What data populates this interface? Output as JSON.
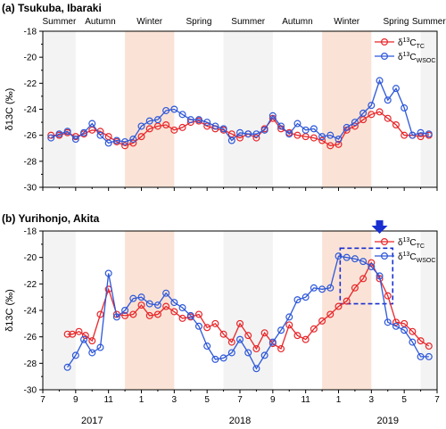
{
  "chart_data": [
    {
      "type": "line",
      "panel_label": "(a) Tsukuba, Ibaraki",
      "ylabel": "δ13C (‰)",
      "ylim": [
        -30,
        -18
      ],
      "yticks": [
        -30,
        -28,
        -26,
        -24,
        -22,
        -20,
        -18
      ],
      "xlim": [
        7,
        31
      ],
      "grid": false,
      "legend_position": "top-right",
      "seasons": [
        {
          "label": "Summer",
          "start": 7,
          "end": 9,
          "shade": "#f3f3f3",
          "label_color": "#000000"
        },
        {
          "label": "Autumn",
          "start": 9,
          "end": 12,
          "shade": "none",
          "label_color": "#000000"
        },
        {
          "label": "Winter",
          "start": 12,
          "end": 15,
          "shade": "#fae3d6",
          "label_color": "#d42a1e"
        },
        {
          "label": "Spring",
          "start": 15,
          "end": 18,
          "shade": "none",
          "label_color": "#000000"
        },
        {
          "label": "Summer",
          "start": 18,
          "end": 21,
          "shade": "#f3f3f3",
          "label_color": "#000000"
        },
        {
          "label": "Autumn",
          "start": 21,
          "end": 24,
          "shade": "none",
          "label_color": "#000000"
        },
        {
          "label": "Winter",
          "start": 24,
          "end": 27,
          "shade": "#fae3d6",
          "label_color": "#d42a1e"
        },
        {
          "label": "Spring",
          "start": 27,
          "end": 30,
          "shade": "none",
          "label_color": "#000000"
        },
        {
          "label": "Summer",
          "start": 30,
          "end": 31,
          "shade": "#f3f3f3",
          "label_color": "#000000"
        }
      ],
      "series": [
        {
          "name": "δ13C_TC",
          "color": "#e8262a",
          "x": [
            7.5,
            8.0,
            8.5,
            9.0,
            9.5,
            10.0,
            10.5,
            11.0,
            11.5,
            12.0,
            12.5,
            13.0,
            13.5,
            14.0,
            14.5,
            15.0,
            15.5,
            16.0,
            16.5,
            17.0,
            17.5,
            18.0,
            18.5,
            19.0,
            19.5,
            20.0,
            20.5,
            21.0,
            21.5,
            22.0,
            22.5,
            23.0,
            23.5,
            24.0,
            24.5,
            25.0,
            25.5,
            26.0,
            26.5,
            27.0,
            27.5,
            28.0,
            28.5,
            29.0,
            29.5,
            30.0,
            30.5
          ],
          "y": [
            -26.0,
            -26.0,
            -25.8,
            -26.1,
            -25.9,
            -25.6,
            -25.7,
            -26.1,
            -26.5,
            -26.8,
            -26.6,
            -26.1,
            -25.5,
            -25.3,
            -25.2,
            -25.6,
            -25.4,
            -25.0,
            -24.9,
            -25.3,
            -25.5,
            -25.6,
            -25.9,
            -26.2,
            -25.9,
            -26.2,
            -25.5,
            -24.7,
            -25.5,
            -25.8,
            -26.0,
            -26.1,
            -26.2,
            -26.4,
            -26.8,
            -26.7,
            -25.6,
            -25.3,
            -24.8,
            -24.4,
            -24.2,
            -24.7,
            -25.2,
            -26.0,
            -26.0,
            -26.1,
            -26.0
          ]
        },
        {
          "name": "δ13C_WSOC",
          "color": "#2e58d9",
          "x": [
            7.5,
            8.0,
            8.5,
            9.0,
            9.5,
            10.0,
            10.5,
            11.0,
            11.5,
            12.0,
            12.5,
            13.0,
            13.5,
            14.0,
            14.5,
            15.0,
            15.5,
            16.0,
            16.5,
            17.0,
            17.5,
            18.0,
            18.5,
            19.0,
            19.5,
            20.0,
            20.5,
            21.0,
            21.5,
            22.0,
            22.5,
            23.0,
            23.5,
            24.0,
            24.5,
            25.0,
            25.5,
            26.0,
            26.5,
            27.0,
            27.5,
            28.0,
            28.5,
            29.0,
            29.5,
            30.0,
            30.5
          ],
          "y": [
            -26.2,
            -25.9,
            -25.7,
            -26.3,
            -25.8,
            -25.1,
            -26.0,
            -26.6,
            -26.4,
            -26.5,
            -26.3,
            -25.3,
            -24.9,
            -24.8,
            -24.1,
            -24.0,
            -24.4,
            -24.8,
            -24.8,
            -25.0,
            -25.3,
            -25.5,
            -26.4,
            -25.8,
            -25.9,
            -25.9,
            -25.6,
            -24.5,
            -25.3,
            -25.9,
            -25.1,
            -25.6,
            -25.5,
            -26.1,
            -26.0,
            -26.3,
            -25.4,
            -25.0,
            -24.3,
            -23.7,
            -21.8,
            -23.3,
            -22.4,
            -23.9,
            -26.0,
            -25.8,
            -25.9
          ]
        }
      ]
    },
    {
      "type": "line",
      "panel_label": "(b) Yurihonjo, Akita",
      "ylabel": "δ13C (‰)",
      "ylim": [
        -30,
        -18
      ],
      "yticks": [
        -30,
        -28,
        -26,
        -24,
        -22,
        -20,
        -18
      ],
      "xlim": [
        7,
        31
      ],
      "xticks": [
        7,
        9,
        11,
        13,
        15,
        17,
        19,
        21,
        23,
        25,
        27,
        29,
        31
      ],
      "xticklabels": [
        "7",
        "9",
        "11",
        "1",
        "3",
        "5",
        "7",
        "9",
        "11",
        "1",
        "3",
        "5",
        "7"
      ],
      "year_labels": [
        {
          "label": "2017",
          "at": 10
        },
        {
          "label": "2018",
          "at": 19
        },
        {
          "label": "2019",
          "at": 28
        }
      ],
      "grid": false,
      "legend_position": "top-right",
      "highlight_box": {
        "x": [
          25.1,
          28.3
        ],
        "y": [
          -23.5,
          -19.3
        ],
        "color": "#1a2fd0",
        "arrow_at": 27.5
      },
      "seasons": [
        {
          "start": 7,
          "end": 9,
          "shade": "#f3f3f3"
        },
        {
          "start": 12,
          "end": 15,
          "shade": "#fae3d6"
        },
        {
          "start": 18,
          "end": 21,
          "shade": "#f3f3f3"
        },
        {
          "start": 24,
          "end": 27,
          "shade": "#fae3d6"
        },
        {
          "start": 30,
          "end": 31,
          "shade": "#f3f3f3"
        }
      ],
      "series": [
        {
          "name": "δ13C_TC",
          "color": "#e8262a",
          "x": [
            8.5,
            8.8,
            9.2,
            9.6,
            10.0,
            10.5,
            11.0,
            11.5,
            12.0,
            12.5,
            13.0,
            13.5,
            14.0,
            14.5,
            15.0,
            15.5,
            16.0,
            16.5,
            17.0,
            17.5,
            18.0,
            18.5,
            19.0,
            19.5,
            20.0,
            20.5,
            21.0,
            21.5,
            22.0,
            22.5,
            23.0,
            23.5,
            24.0,
            24.5,
            25.0,
            25.5,
            26.0,
            26.5,
            27.0,
            27.5,
            28.0,
            28.5,
            29.0,
            29.5,
            30.0,
            30.5
          ],
          "y": [
            -25.8,
            -25.8,
            -25.6,
            -25.9,
            -26.3,
            -24.3,
            -22.4,
            -24.3,
            -24.4,
            -24.3,
            -23.6,
            -24.4,
            -24.3,
            -23.7,
            -24.1,
            -24.6,
            -24.5,
            -24.3,
            -25.3,
            -25.0,
            -25.8,
            -26.4,
            -25.0,
            -25.9,
            -26.9,
            -25.7,
            -26.5,
            -26.9,
            -25.1,
            -25.9,
            -26.2,
            -25.4,
            -24.8,
            -24.3,
            -23.7,
            -23.3,
            -22.3,
            -21.6,
            -20.4,
            -21.6,
            -22.9,
            -24.9,
            -25.0,
            -25.6,
            -26.3,
            -26.7
          ]
        },
        {
          "name": "δ13C_WSOC",
          "color": "#2e58d9",
          "x": [
            8.5,
            9.0,
            9.5,
            10.0,
            10.5,
            11.0,
            11.5,
            12.0,
            12.5,
            13.0,
            13.5,
            14.0,
            14.5,
            15.0,
            15.5,
            16.0,
            16.5,
            17.0,
            17.5,
            18.0,
            18.5,
            19.0,
            19.5,
            20.0,
            20.5,
            21.0,
            21.5,
            22.0,
            22.5,
            23.0,
            23.5,
            24.0,
            24.5,
            25.0,
            25.5,
            26.0,
            26.5,
            27.0,
            27.5,
            28.0,
            28.5,
            29.0,
            29.5,
            30.0,
            30.5
          ],
          "y": [
            -28.3,
            -27.4,
            -26.2,
            -27.2,
            -26.8,
            -21.2,
            -24.5,
            -24.0,
            -23.1,
            -23.0,
            -23.5,
            -23.6,
            -22.7,
            -23.4,
            -23.8,
            -24.4,
            -25.2,
            -26.7,
            -27.7,
            -27.6,
            -27.2,
            -26.2,
            -27.2,
            -28.4,
            -27.4,
            -26.4,
            -25.5,
            -24.5,
            -23.2,
            -23.0,
            -22.3,
            -22.4,
            -22.3,
            -19.9,
            -20.0,
            -20.1,
            -20.3,
            -20.7,
            -21.4,
            -24.9,
            -25.2,
            -25.5,
            -26.4,
            -27.5,
            -27.5
          ]
        }
      ]
    }
  ]
}
